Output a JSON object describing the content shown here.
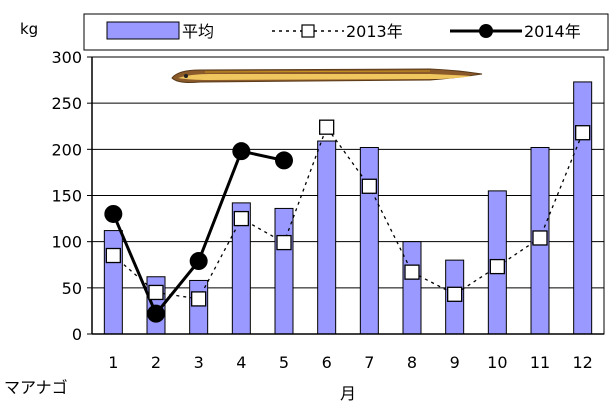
{
  "chart_data": {
    "type": "bar",
    "unit_label": "kg",
    "xlabel": "月",
    "species_label": "マアナゴ",
    "categories": [
      "1",
      "2",
      "3",
      "4",
      "5",
      "6",
      "7",
      "8",
      "9",
      "10",
      "11",
      "12"
    ],
    "ylim": [
      0,
      300
    ],
    "yticks": [
      0,
      50,
      100,
      150,
      200,
      250,
      300
    ],
    "grid": true,
    "legend_position": "top",
    "series": [
      {
        "name": "平均",
        "kind": "bar",
        "color": "#9999FF",
        "values": [
          112,
          62,
          58,
          142,
          136,
          209,
          202,
          100,
          80,
          155,
          202,
          273
        ]
      },
      {
        "name": "2013年",
        "kind": "line-dashed-square",
        "values": [
          85,
          45,
          38,
          125,
          99,
          224,
          160,
          67,
          43,
          73,
          104,
          218
        ]
      },
      {
        "name": "2014年",
        "kind": "line-solid-circle",
        "values": [
          130,
          22,
          79,
          198,
          188,
          null,
          null,
          null,
          null,
          null,
          null,
          null
        ]
      }
    ]
  },
  "illustration": {
    "name": "anago-eel-picture",
    "colors": [
      "#8B5A2B",
      "#F0C75E",
      "#C8961E"
    ]
  }
}
